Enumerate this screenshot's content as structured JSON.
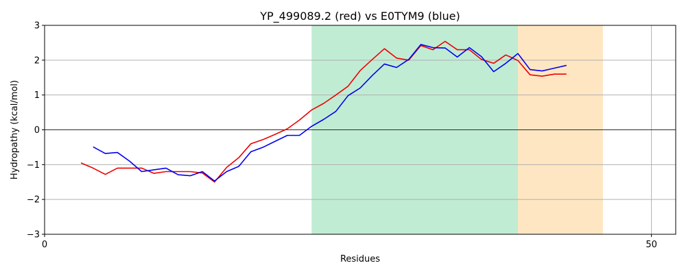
{
  "chart_data": {
    "type": "line",
    "title": "YP_499089.2 (red) vs E0TYM9 (blue)",
    "xlabel": "Residues",
    "ylabel": "Hydropathy (kcal/mol)",
    "xlim": [
      0,
      52
    ],
    "ylim": [
      -3,
      3
    ],
    "x_ticks": [
      0,
      50
    ],
    "y_ticks": [
      -3,
      -2,
      -1,
      0,
      1,
      2,
      3
    ],
    "y_tick_labels": [
      "−3",
      "−2",
      "−1",
      "0",
      "1",
      "2",
      "3"
    ],
    "x_tick_labels": [
      "0",
      "50"
    ],
    "grid": true,
    "zero_line": true,
    "regions": [
      {
        "x0": 22,
        "x1": 39,
        "color": "#c1ecd4"
      },
      {
        "x0": 39,
        "x1": 46,
        "color": "#fee6c2"
      }
    ],
    "series": [
      {
        "color": "#ee0000",
        "x": [
          3,
          4,
          5,
          6,
          7,
          8,
          9,
          10,
          11,
          12,
          13,
          14,
          15,
          16,
          17,
          18,
          19,
          20,
          21,
          22,
          23,
          24,
          25,
          26,
          27,
          28,
          29,
          30,
          31,
          32,
          33,
          34,
          35,
          36,
          37,
          38,
          39,
          40,
          41,
          42,
          43
        ],
        "y": [
          -0.95,
          -1.1,
          -1.28,
          -1.1,
          -1.1,
          -1.1,
          -1.25,
          -1.2,
          -1.2,
          -1.2,
          -1.24,
          -1.5,
          -1.08,
          -0.8,
          -0.4,
          -0.28,
          -0.13,
          0.03,
          0.28,
          0.57,
          0.76,
          1.0,
          1.25,
          1.7,
          2.02,
          2.33,
          2.06,
          2.0,
          2.42,
          2.3,
          2.54,
          2.3,
          2.3,
          2.02,
          1.91,
          2.15,
          1.99,
          1.58,
          1.54,
          1.6,
          1.6
        ]
      },
      {
        "color": "#0000ee",
        "x": [
          4,
          5,
          6,
          7,
          8,
          9,
          10,
          11,
          12,
          13,
          14,
          15,
          16,
          17,
          18,
          19,
          20,
          21,
          22,
          23,
          24,
          25,
          26,
          27,
          28,
          29,
          30,
          31,
          32,
          33,
          34,
          35,
          36,
          37,
          38,
          39,
          40,
          41,
          42,
          43
        ],
        "y": [
          -0.49,
          -0.68,
          -0.65,
          -0.9,
          -1.2,
          -1.15,
          -1.1,
          -1.29,
          -1.32,
          -1.2,
          -1.47,
          -1.2,
          -1.05,
          -0.63,
          -0.5,
          -0.33,
          -0.16,
          -0.16,
          0.1,
          0.3,
          0.53,
          0.98,
          1.2,
          1.56,
          1.89,
          1.79,
          2.02,
          2.45,
          2.36,
          2.35,
          2.09,
          2.36,
          2.1,
          1.67,
          1.91,
          2.19,
          1.73,
          1.69,
          1.77,
          1.85
        ]
      }
    ]
  }
}
